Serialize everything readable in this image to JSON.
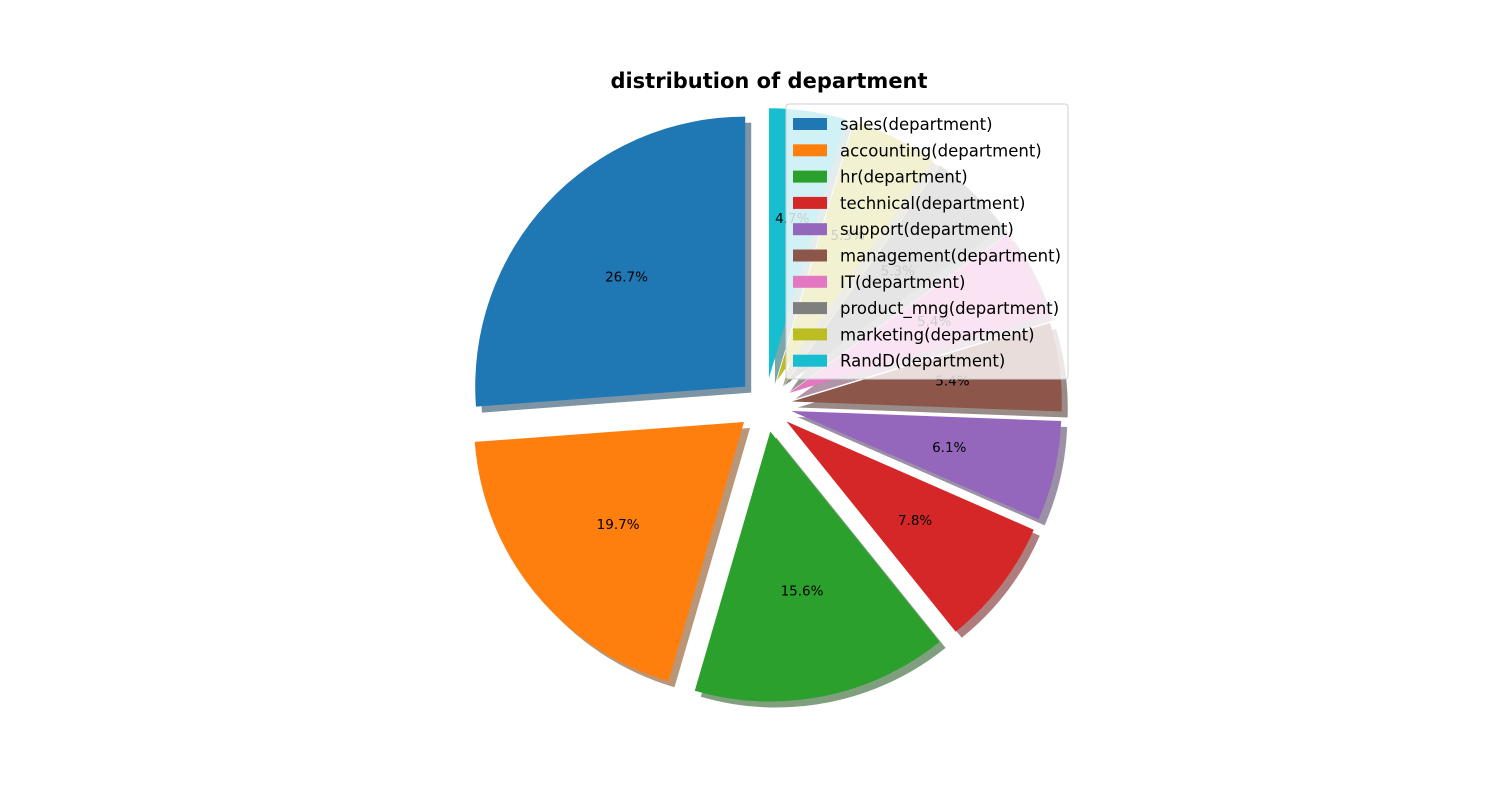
{
  "chart_data": {
    "type": "pie",
    "title": "distribution of department",
    "categories": [
      "sales(department)",
      "accounting(department)",
      "hr(department)",
      "technical(department)",
      "support(department)",
      "management(department)",
      "IT(department)",
      "product_mng(department)",
      "marketing(department)",
      "RandD(department)"
    ],
    "values": [
      26.7,
      19.7,
      15.6,
      7.8,
      6.1,
      5.4,
      5.4,
      5.3,
      5.3,
      4.7
    ],
    "value_labels": [
      "26.7%",
      "19.7%",
      "15.6%",
      "7.8%",
      "6.1%",
      "5.4%",
      "5.4%",
      "5.3%",
      "5.3%",
      "4.7%"
    ],
    "colors": [
      "#1f77b4",
      "#ff7f0e",
      "#2ca02c",
      "#d62728",
      "#9467bd",
      "#8c564b",
      "#e377c2",
      "#7f7f7f",
      "#bcbd22",
      "#17becf"
    ],
    "start_angle_deg": 90,
    "direction": "counterclockwise",
    "exploded": true,
    "shadow": true,
    "legend_position": "top-right"
  }
}
